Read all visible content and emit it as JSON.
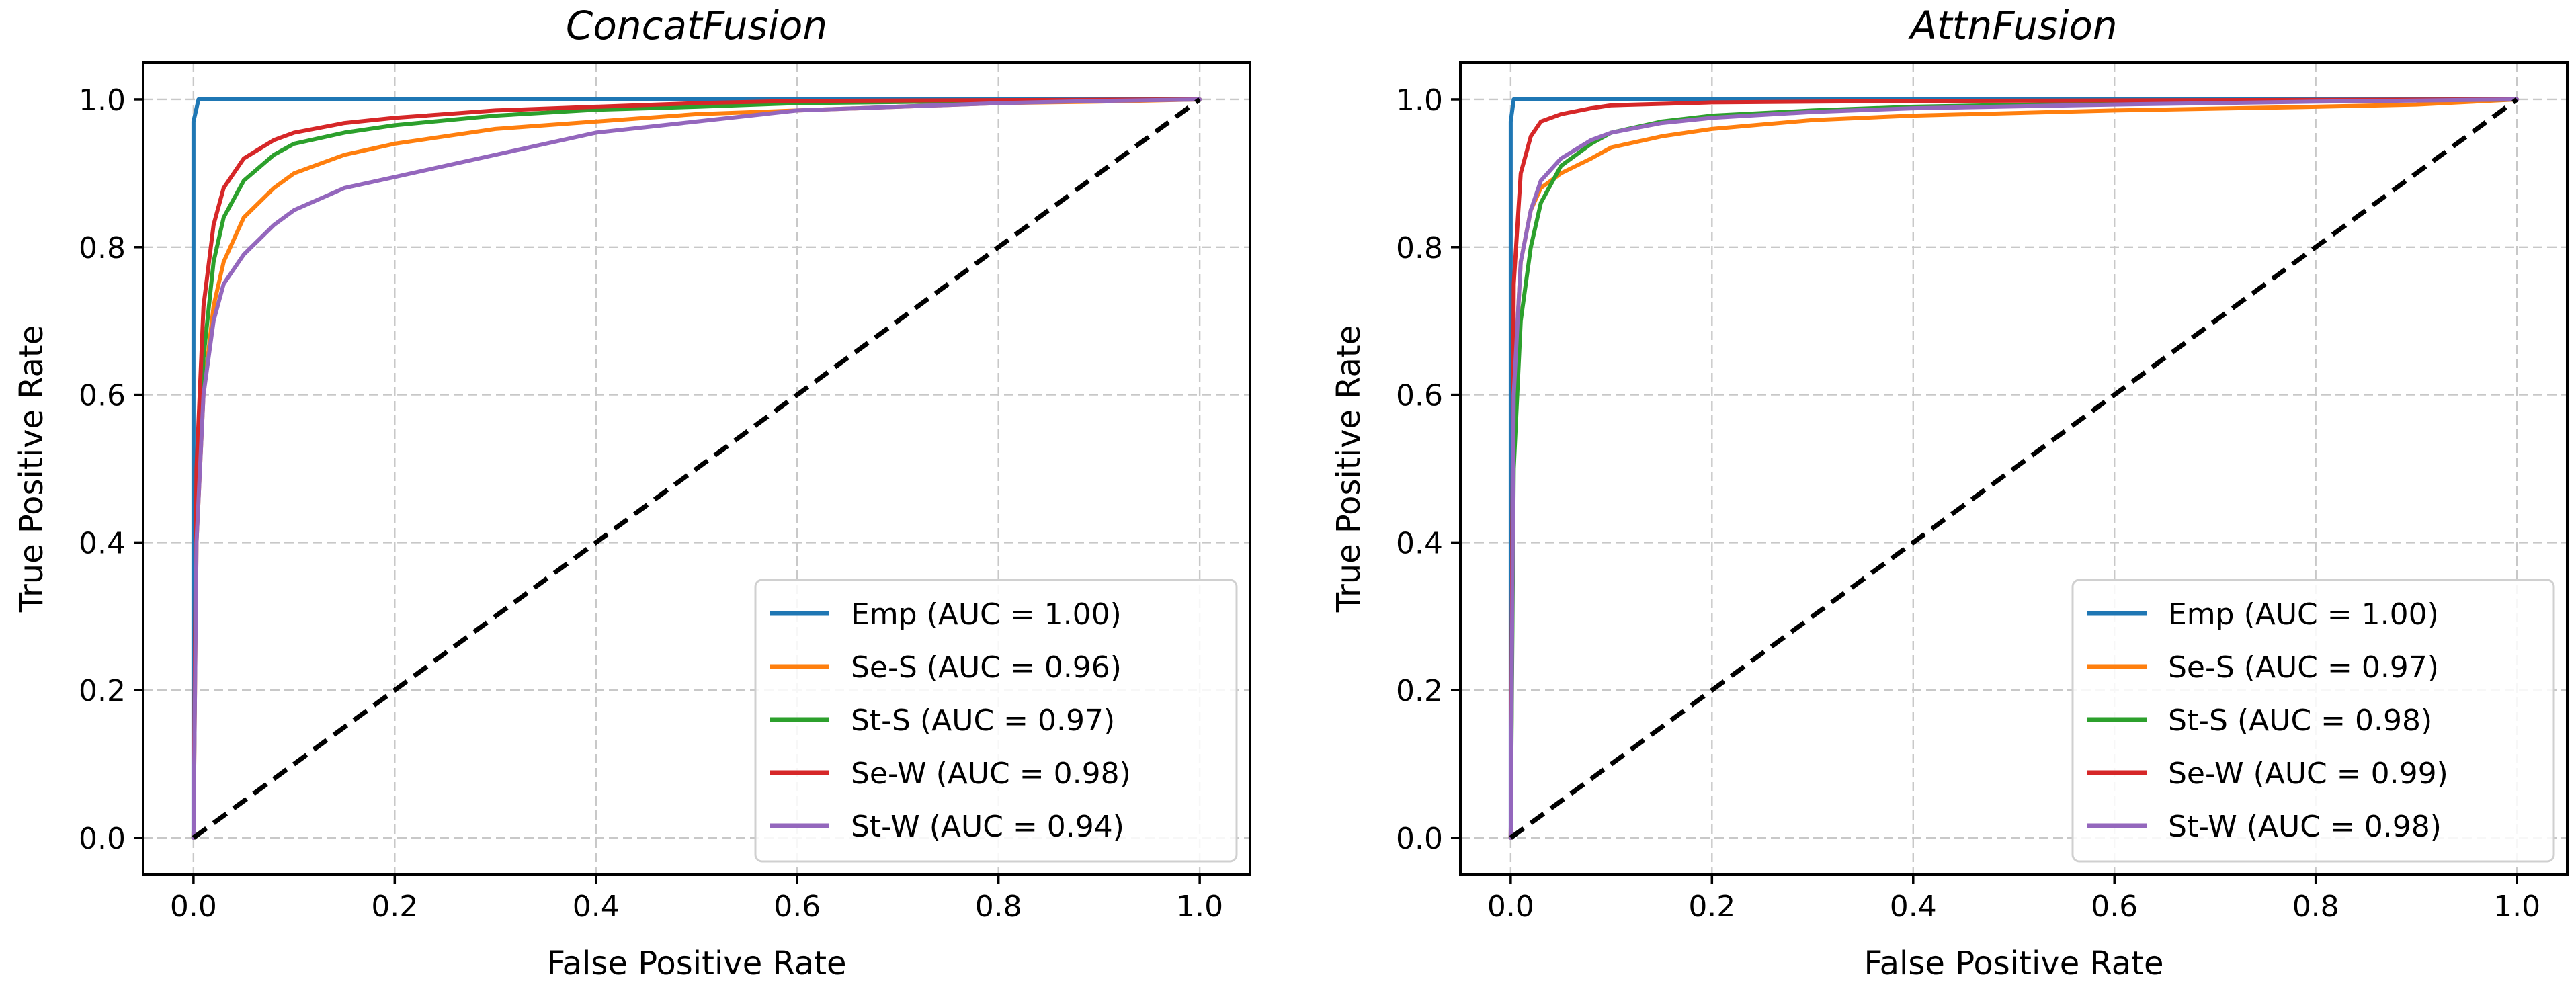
{
  "chart_data": [
    {
      "type": "line",
      "title": "ConcatFusion",
      "xlabel": "False Positive Rate",
      "ylabel": "True Positive Rate",
      "xlim": [
        -0.05,
        1.05
      ],
      "ylim": [
        -0.05,
        1.05
      ],
      "xticks": [
        "0.0",
        "0.2",
        "0.4",
        "0.6",
        "0.8",
        "1.0"
      ],
      "yticks": [
        "0.0",
        "0.2",
        "0.4",
        "0.6",
        "0.8",
        "1.0"
      ],
      "grid": true,
      "legend_position": "lower-right",
      "series": [
        {
          "name": "Emp (AUC = 1.00)",
          "color": "#1f77b4",
          "points": [
            [
              0,
              0
            ],
            [
              0,
              0.97
            ],
            [
              0.005,
              1.0
            ],
            [
              1.0,
              1.0
            ]
          ]
        },
        {
          "name": "Se-S (AUC = 0.96)",
          "color": "#ff7f0e",
          "points": [
            [
              0,
              0
            ],
            [
              0.003,
              0.4
            ],
            [
              0.01,
              0.6
            ],
            [
              0.02,
              0.72
            ],
            [
              0.03,
              0.78
            ],
            [
              0.05,
              0.84
            ],
            [
              0.08,
              0.88
            ],
            [
              0.1,
              0.9
            ],
            [
              0.15,
              0.925
            ],
            [
              0.2,
              0.94
            ],
            [
              0.3,
              0.96
            ],
            [
              0.4,
              0.97
            ],
            [
              0.5,
              0.98
            ],
            [
              0.6,
              0.985
            ],
            [
              0.7,
              0.99
            ],
            [
              0.8,
              0.995
            ],
            [
              0.9,
              0.997
            ],
            [
              1.0,
              1.0
            ]
          ]
        },
        {
          "name": "St-S (AUC = 0.97)",
          "color": "#2ca02c",
          "points": [
            [
              0,
              0
            ],
            [
              0.003,
              0.45
            ],
            [
              0.01,
              0.65
            ],
            [
              0.02,
              0.78
            ],
            [
              0.03,
              0.84
            ],
            [
              0.05,
              0.89
            ],
            [
              0.08,
              0.925
            ],
            [
              0.1,
              0.94
            ],
            [
              0.15,
              0.955
            ],
            [
              0.2,
              0.965
            ],
            [
              0.3,
              0.978
            ],
            [
              0.4,
              0.986
            ],
            [
              0.5,
              0.99
            ],
            [
              0.6,
              0.995
            ],
            [
              0.8,
              0.998
            ],
            [
              1.0,
              1.0
            ]
          ]
        },
        {
          "name": "Se-W (AUC = 0.98)",
          "color": "#d62728",
          "points": [
            [
              0,
              0
            ],
            [
              0.003,
              0.5
            ],
            [
              0.01,
              0.72
            ],
            [
              0.02,
              0.83
            ],
            [
              0.03,
              0.88
            ],
            [
              0.05,
              0.92
            ],
            [
              0.08,
              0.945
            ],
            [
              0.1,
              0.955
            ],
            [
              0.15,
              0.968
            ],
            [
              0.2,
              0.975
            ],
            [
              0.3,
              0.985
            ],
            [
              0.4,
              0.99
            ],
            [
              0.5,
              0.995
            ],
            [
              0.6,
              0.998
            ],
            [
              0.8,
              0.999
            ],
            [
              1.0,
              1.0
            ]
          ]
        },
        {
          "name": "St-W (AUC = 0.94)",
          "color": "#9467bd",
          "points": [
            [
              0,
              0
            ],
            [
              0.003,
              0.4
            ],
            [
              0.01,
              0.6
            ],
            [
              0.02,
              0.7
            ],
            [
              0.03,
              0.75
            ],
            [
              0.05,
              0.79
            ],
            [
              0.08,
              0.83
            ],
            [
              0.1,
              0.85
            ],
            [
              0.15,
              0.88
            ],
            [
              0.2,
              0.895
            ],
            [
              0.25,
              0.91
            ],
            [
              0.3,
              0.925
            ],
            [
              0.35,
              0.94
            ],
            [
              0.4,
              0.955
            ],
            [
              0.5,
              0.97
            ],
            [
              0.6,
              0.985
            ],
            [
              0.7,
              0.99
            ],
            [
              0.8,
              0.995
            ],
            [
              0.9,
              0.998
            ],
            [
              1.0,
              1.0
            ]
          ]
        },
        {
          "name": "",
          "color": "#000000",
          "dashed": true,
          "points": [
            [
              0,
              0
            ],
            [
              1,
              1
            ]
          ]
        }
      ]
    },
    {
      "type": "line",
      "title": "AttnFusion",
      "xlabel": "False Positive Rate",
      "ylabel": "True Positive Rate",
      "xlim": [
        -0.05,
        1.05
      ],
      "ylim": [
        -0.05,
        1.05
      ],
      "xticks": [
        "0.0",
        "0.2",
        "0.4",
        "0.6",
        "0.8",
        "1.0"
      ],
      "yticks": [
        "0.0",
        "0.2",
        "0.4",
        "0.6",
        "0.8",
        "1.0"
      ],
      "grid": true,
      "legend_position": "lower-right",
      "series": [
        {
          "name": "Emp (AUC = 1.00)",
          "color": "#1f77b4",
          "points": [
            [
              0,
              0
            ],
            [
              0,
              0.97
            ],
            [
              0.003,
              1.0
            ],
            [
              1.0,
              1.0
            ]
          ]
        },
        {
          "name": "Se-S (AUC = 0.97)",
          "color": "#ff7f0e",
          "points": [
            [
              0,
              0
            ],
            [
              0.003,
              0.6
            ],
            [
              0.01,
              0.78
            ],
            [
              0.02,
              0.85
            ],
            [
              0.03,
              0.88
            ],
            [
              0.05,
              0.9
            ],
            [
              0.08,
              0.92
            ],
            [
              0.1,
              0.935
            ],
            [
              0.15,
              0.95
            ],
            [
              0.2,
              0.96
            ],
            [
              0.3,
              0.972
            ],
            [
              0.4,
              0.978
            ],
            [
              0.6,
              0.985
            ],
            [
              0.8,
              0.99
            ],
            [
              0.9,
              0.993
            ],
            [
              1.0,
              1.0
            ]
          ]
        },
        {
          "name": "St-S (AUC = 0.98)",
          "color": "#2ca02c",
          "points": [
            [
              0,
              0
            ],
            [
              0.003,
              0.5
            ],
            [
              0.01,
              0.7
            ],
            [
              0.02,
              0.8
            ],
            [
              0.03,
              0.86
            ],
            [
              0.05,
              0.91
            ],
            [
              0.08,
              0.94
            ],
            [
              0.1,
              0.955
            ],
            [
              0.15,
              0.97
            ],
            [
              0.2,
              0.978
            ],
            [
              0.3,
              0.985
            ],
            [
              0.4,
              0.99
            ],
            [
              0.6,
              0.995
            ],
            [
              0.8,
              0.998
            ],
            [
              1.0,
              1.0
            ]
          ]
        },
        {
          "name": "Se-W (AUC = 0.99)",
          "color": "#d62728",
          "points": [
            [
              0,
              0
            ],
            [
              0.003,
              0.75
            ],
            [
              0.01,
              0.9
            ],
            [
              0.02,
              0.95
            ],
            [
              0.03,
              0.97
            ],
            [
              0.05,
              0.98
            ],
            [
              0.08,
              0.988
            ],
            [
              0.1,
              0.992
            ],
            [
              0.2,
              0.996
            ],
            [
              0.4,
              0.998
            ],
            [
              1.0,
              1.0
            ]
          ]
        },
        {
          "name": "St-W (AUC = 0.98)",
          "color": "#9467bd",
          "points": [
            [
              0,
              0
            ],
            [
              0.003,
              0.6
            ],
            [
              0.01,
              0.78
            ],
            [
              0.02,
              0.85
            ],
            [
              0.03,
              0.89
            ],
            [
              0.05,
              0.92
            ],
            [
              0.08,
              0.945
            ],
            [
              0.1,
              0.955
            ],
            [
              0.15,
              0.968
            ],
            [
              0.2,
              0.975
            ],
            [
              0.3,
              0.983
            ],
            [
              0.4,
              0.988
            ],
            [
              0.6,
              0.993
            ],
            [
              0.8,
              0.997
            ],
            [
              1.0,
              1.0
            ]
          ]
        },
        {
          "name": "",
          "color": "#000000",
          "dashed": true,
          "points": [
            [
              0,
              0
            ],
            [
              1,
              1
            ]
          ]
        }
      ]
    }
  ]
}
